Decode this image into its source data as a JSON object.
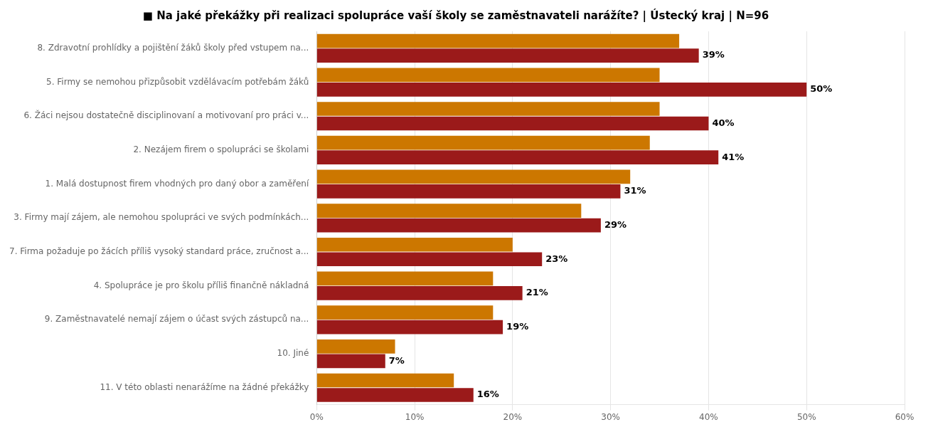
{
  "chart_data": {
    "type": "bar",
    "orientation": "horizontal",
    "title": "■ Na jaké překážky při realizaci spolupráce vaší školy se zaměstnavateli narážíte? | Ústecký kraj | N=96",
    "categories": [
      "8. Zdravotní prohlídky a pojištění žáků školy před vstupem na...",
      "5. Firmy se nemohou přizpůsobit vzdělávacím potřebám žáků",
      "6. Žáci nejsou dostatečně disciplinovaní a motivovaní pro práci v...",
      "2. Nezájem firem o spolupráci se školami",
      "1. Malá dostupnost firem vhodných pro daný obor a zaměření",
      "3. Firmy mají zájem, ale nemohou spolupráci ve svých podmínkách...",
      "7. Firma požaduje po žácích příliš vysoký standard práce, zručnost a...",
      "4. Spolupráce je pro školu příliš finančně nákladná",
      "9. Zaměstnavatelé nemají zájem o účast svých zástupců na...",
      "10. Jiné",
      "11. V této oblasti nenarážíme na žádné překážky"
    ],
    "series": [
      {
        "color": "#cc7700",
        "values": [
          37,
          35,
          35,
          34,
          32,
          27,
          20,
          18,
          18,
          8,
          14
        ]
      },
      {
        "color": "#9b1a1a",
        "values": [
          39,
          50,
          40,
          41,
          31,
          29,
          23,
          21,
          19,
          7,
          16
        ],
        "value_labels": [
          "39%",
          "50%",
          "40%",
          "41%",
          "31%",
          "29%",
          "23%",
          "21%",
          "19%",
          "7%",
          "16%"
        ]
      }
    ],
    "xlim": [
      0,
      60
    ],
    "xticks": [
      {
        "value": 0,
        "label": "0%"
      },
      {
        "value": 10,
        "label": "10%"
      },
      {
        "value": 20,
        "label": "20%"
      },
      {
        "value": 30,
        "label": "30%"
      },
      {
        "value": 40,
        "label": "40%"
      },
      {
        "value": 50,
        "label": "50%"
      },
      {
        "value": 60,
        "label": "60%"
      }
    ],
    "grid": true,
    "legend": false
  }
}
